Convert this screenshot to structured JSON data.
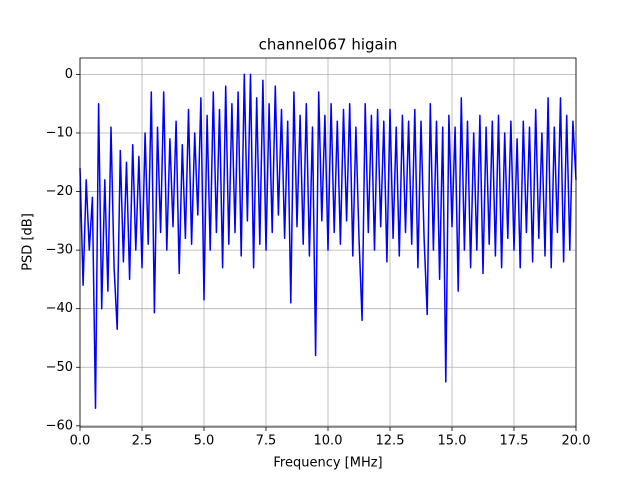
{
  "chart_data": {
    "type": "line",
    "title": "channel067 higain",
    "xlabel": "Frequency [MHz]",
    "ylabel": "PSD [dB]",
    "color": "#0000ff",
    "grid": true,
    "xlim": [
      0,
      20
    ],
    "ylim": [
      -60.2,
      2.8
    ],
    "xticks": [
      {
        "value": 0,
        "label": "0.0"
      },
      {
        "value": 2.5,
        "label": "2.5"
      },
      {
        "value": 5,
        "label": "5.0"
      },
      {
        "value": 7.5,
        "label": "7.5"
      },
      {
        "value": 10,
        "label": "10.0"
      },
      {
        "value": 12.5,
        "label": "12.5"
      },
      {
        "value": 15,
        "label": "15.0"
      },
      {
        "value": 17.5,
        "label": "17.5"
      },
      {
        "value": 20,
        "label": "20.0"
      }
    ],
    "yticks": [
      {
        "value": -60,
        "label": "−60"
      },
      {
        "value": -50,
        "label": "−50"
      },
      {
        "value": -40,
        "label": "−40"
      },
      {
        "value": -30,
        "label": "−30"
      },
      {
        "value": -20,
        "label": "−20"
      },
      {
        "value": -10,
        "label": "−10"
      },
      0
    ],
    "x": [
      0,
      0.125,
      0.25,
      0.375,
      0.5,
      0.625,
      0.75,
      0.875,
      1,
      1.125,
      1.25,
      1.375,
      1.5,
      1.625,
      1.75,
      1.875,
      2,
      2.125,
      2.25,
      2.375,
      2.5,
      2.625,
      2.75,
      2.875,
      3,
      3.125,
      3.25,
      3.375,
      3.5,
      3.625,
      3.75,
      3.875,
      4,
      4.125,
      4.25,
      4.375,
      4.5,
      4.625,
      4.75,
      4.875,
      5,
      5.125,
      5.25,
      5.375,
      5.5,
      5.625,
      5.75,
      5.875,
      6,
      6.125,
      6.25,
      6.375,
      6.5,
      6.625,
      6.75,
      6.875,
      7,
      7.125,
      7.25,
      7.375,
      7.5,
      7.625,
      7.75,
      7.875,
      8,
      8.125,
      8.25,
      8.375,
      8.5,
      8.625,
      8.75,
      8.875,
      9,
      9.125,
      9.25,
      9.375,
      9.5,
      9.625,
      9.75,
      9.875,
      10,
      10.125,
      10.25,
      10.375,
      10.5,
      10.625,
      10.75,
      10.875,
      11,
      11.125,
      11.25,
      11.375,
      11.5,
      11.625,
      11.75,
      11.875,
      12,
      12.125,
      12.25,
      12.375,
      12.5,
      12.625,
      12.75,
      12.875,
      13,
      13.125,
      13.25,
      13.375,
      13.5,
      13.625,
      13.75,
      13.875,
      14,
      14.125,
      14.25,
      14.375,
      14.5,
      14.625,
      14.75,
      14.875,
      15,
      15.125,
      15.25,
      15.375,
      15.5,
      15.625,
      15.75,
      15.875,
      16,
      16.125,
      16.25,
      16.375,
      16.5,
      16.625,
      16.75,
      16.875,
      17,
      17.125,
      17.25,
      17.375,
      17.5,
      17.625,
      17.75,
      17.875,
      18,
      18.125,
      18.25,
      18.375,
      18.5,
      18.625,
      18.75,
      18.875,
      19,
      19.125,
      19.25,
      19.375,
      19.5,
      19.625,
      19.75,
      19.875,
      20
    ],
    "values": [
      -16,
      -36,
      -18,
      -30,
      -21,
      -57,
      -5,
      -40,
      -18,
      -37,
      -9,
      -33,
      -43.5,
      -13,
      -32,
      -15,
      -35,
      -12,
      -30,
      -14,
      -33,
      -10,
      -29,
      -3,
      -40.7,
      -9,
      -27,
      -3,
      -30,
      -11,
      -26,
      -8,
      -34,
      -12,
      -28,
      -6,
      -29,
      -10,
      -24,
      -4,
      -38.5,
      -7,
      -30,
      -3,
      -27,
      -6,
      -33,
      -2,
      -29,
      -5,
      -27,
      -3,
      -31,
      0,
      -25,
      0,
      -33,
      -4,
      -29,
      -1,
      -30,
      -5,
      -27,
      -2,
      -24,
      -6,
      -28,
      -8,
      -39,
      -3,
      -26,
      -7,
      -29,
      -5,
      -31,
      -9,
      -48,
      -3,
      -25,
      -7,
      -30,
      -5,
      -27,
      -8,
      -29,
      -6,
      -25,
      -5,
      -31,
      -9,
      -28,
      -42,
      -5,
      -27,
      -7,
      -30,
      -6,
      -26,
      -8,
      -32,
      -6,
      -28,
      -9,
      -31,
      -7,
      -27,
      -8,
      -29,
      -6,
      -33,
      -8,
      -28,
      -41,
      -5,
      -30,
      -8,
      -35,
      -9,
      -52.5,
      -7,
      -26,
      -9,
      -37,
      -4,
      -30,
      -8,
      -33,
      -10,
      -30,
      -7,
      -34,
      -9,
      -29,
      -8,
      -31,
      -7,
      -33,
      -10,
      -28,
      -8,
      -30,
      -11,
      -33,
      -8,
      -27,
      -9,
      -32,
      -6,
      -28,
      -10,
      -31,
      -4,
      -33,
      -9,
      -27,
      -4,
      -32,
      -7,
      -30,
      -8,
      -18
    ]
  }
}
